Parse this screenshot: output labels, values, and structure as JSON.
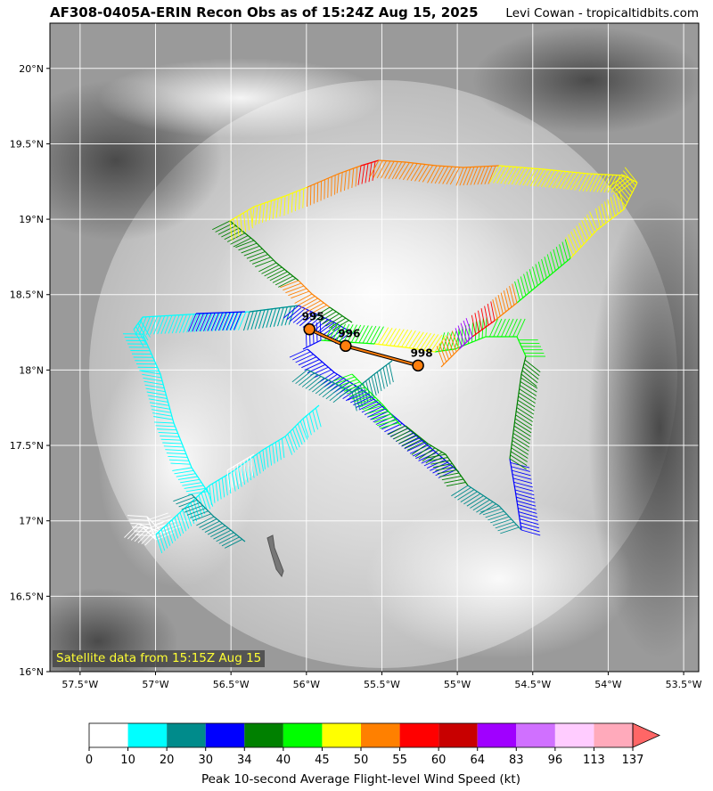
{
  "title": "AF308-0405A-ERIN Recon Obs as of 15:24Z Aug 15, 2025",
  "credit": "Levi Cowan - tropicaltidbits.com",
  "satellite_label": "Satellite data from 15:15Z Aug 15",
  "map": {
    "lon_ticks": [
      "57.5°W",
      "57°W",
      "56.5°W",
      "56°W",
      "55.5°W",
      "55°W",
      "54.5°W",
      "54°W",
      "53.5°W"
    ],
    "lat_ticks": [
      "20°N",
      "19.5°N",
      "19°N",
      "18.5°N",
      "18°N",
      "17.5°N",
      "17°N",
      "16.5°N",
      "16°N"
    ],
    "lon_range": [
      -57.7,
      -53.4
    ],
    "lat_range": [
      16.0,
      20.3
    ],
    "grid": true
  },
  "pressure_obs": [
    {
      "label": "995",
      "lon": -55.98,
      "lat": 18.27
    },
    {
      "label": "996",
      "lon": -55.74,
      "lat": 18.16
    },
    {
      "label": "998",
      "lon": -55.26,
      "lat": 18.03
    }
  ],
  "colorbar": {
    "title": "Peak 10-second Average Flight-level Wind Speed (kt)",
    "ticks": [
      "0",
      "10",
      "20",
      "30",
      "34",
      "40",
      "45",
      "50",
      "55",
      "60",
      "64",
      "83",
      "96",
      "113",
      "137"
    ],
    "colors": [
      "#ffffff",
      "#00ffff",
      "#008b8b",
      "#0000ff",
      "#008000",
      "#00ff00",
      "#ffff00",
      "#ff8000",
      "#ff0000",
      "#c80000",
      "#a000ff",
      "#d070ff",
      "#ffccff",
      "#ffaabb"
    ],
    "extend_color": "#ff6666"
  }
}
